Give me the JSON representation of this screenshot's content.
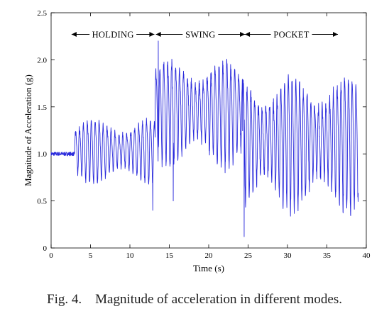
{
  "caption": "Fig. 4.    Magnitude of acceleration in different modes.",
  "chart_data": {
    "type": "line",
    "title": "",
    "xlabel": "Time (s)",
    "ylabel": "Magnitude of Acceleration (g)",
    "xlim": [
      0,
      40
    ],
    "ylim": [
      0,
      2.5
    ],
    "xticks": [
      0,
      5,
      10,
      15,
      20,
      25,
      30,
      35,
      40
    ],
    "yticks": [
      0,
      0.5,
      1.0,
      1.5,
      2.0,
      2.5
    ],
    "xtick_labels": [
      "0",
      "5",
      "10",
      "15",
      "20",
      "25",
      "30",
      "35",
      "40"
    ],
    "ytick_labels": [
      "0",
      "0.5",
      "1.0",
      "1.5",
      "2.0",
      "2.5"
    ],
    "grid": false,
    "line_color": "#2b2bdc",
    "annotations": [
      {
        "text": "HOLDING",
        "x_start": 2.6,
        "x_end": 13.1,
        "y": 2.27
      },
      {
        "text": "SWING",
        "x_start": 13.3,
        "x_end": 24.6,
        "y": 2.27
      },
      {
        "text": "POCKET",
        "x_start": 24.6,
        "x_end": 36.4,
        "y": 2.27
      }
    ],
    "series": [
      {
        "segments": [
          {
            "mode": "rest",
            "t_start": 0.0,
            "t_end": 3.0,
            "freq_hz": 0,
            "mean": 1.0,
            "min": 0.98,
            "max": 1.02
          },
          {
            "mode": "holding",
            "t_start": 3.0,
            "t_end": 13.2,
            "freq_hz": 2.0,
            "mean": 1.0,
            "min": 0.68,
            "max": 1.42
          },
          {
            "mode": "swing",
            "t_start": 13.2,
            "t_end": 24.3,
            "freq_hz": 2.0,
            "mean": 1.35,
            "min": 0.85,
            "max": 2.1
          },
          {
            "mode": "pocket",
            "t_start": 24.3,
            "t_end": 39.0,
            "freq_hz": 2.1,
            "mean": 1.1,
            "min": 0.38,
            "max": 1.95
          }
        ],
        "peaks": [
          {
            "x": 13.6,
            "y": 2.2
          },
          {
            "x": 12.9,
            "y": 0.4
          },
          {
            "x": 24.5,
            "y": 0.12
          },
          {
            "x": 15.5,
            "y": 0.5
          }
        ]
      }
    ]
  }
}
